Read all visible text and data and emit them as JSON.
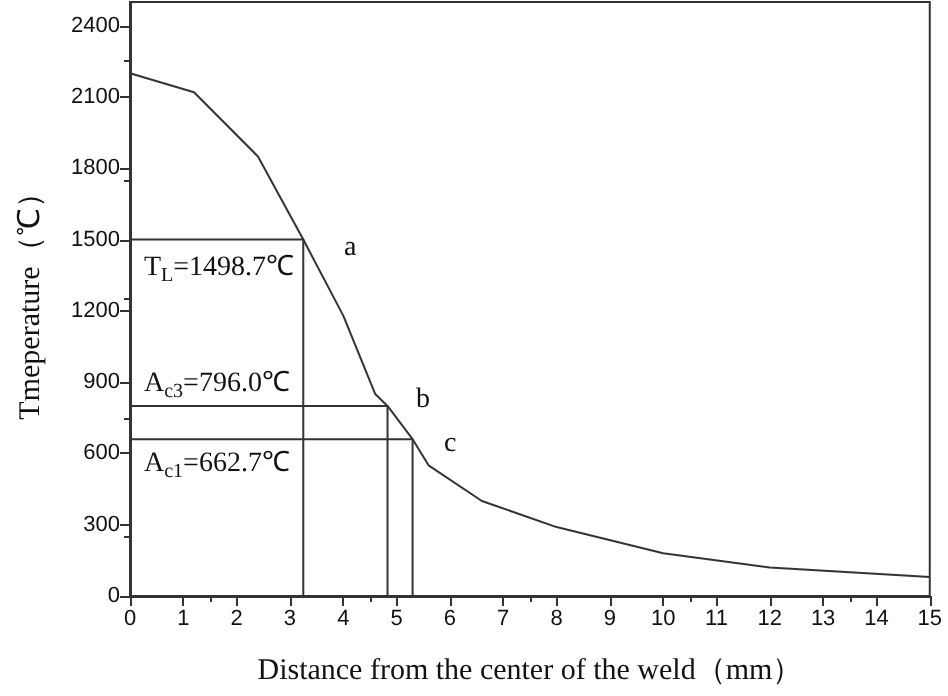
{
  "chart_data": {
    "type": "line",
    "xlabel": "Distance from the center of the weld（mm）",
    "ylabel": "Tmeperature（℃）",
    "xlim": [
      0,
      15
    ],
    "xticks": [
      0,
      1,
      2,
      3,
      4,
      5,
      6,
      7,
      8,
      9,
      10,
      11,
      12,
      13,
      14,
      15
    ],
    "ylim": [
      0,
      2500
    ],
    "yticks": [
      0,
      300,
      600,
      900,
      1200,
      1500,
      1800,
      2100,
      2400
    ],
    "grid": false,
    "marker": "none",
    "line_style": "solid",
    "series": [
      {
        "color": "#333333",
        "x": [
          0,
          1.2,
          2.4,
          3.25,
          4,
          4.6,
          4.83,
          5.3,
          5.6,
          6.6,
          8,
          10,
          12,
          15
        ],
        "values": [
          2200,
          2120,
          1850,
          1500,
          1180,
          850,
          800,
          660,
          550,
          400,
          290,
          180,
          120,
          80
        ]
      },
      {
        "color": "#333333",
        "x": [
          0,
          3.25,
          3.25
        ],
        "values": [
          1500,
          1500,
          0
        ]
      },
      {
        "color": "#333333",
        "x": [
          0,
          4.83,
          4.83
        ],
        "values": [
          800,
          800,
          0
        ]
      },
      {
        "color": "#333333",
        "x": [
          0,
          5.3,
          5.3
        ],
        "values": [
          660,
          660,
          0
        ]
      }
    ],
    "annotations": [
      "a",
      "b",
      "c",
      "T$_{L}$=1498.7℃",
      "A$_{c3}$=796.0℃",
      "A$_{c1}$=662.7℃"
    ]
  }
}
